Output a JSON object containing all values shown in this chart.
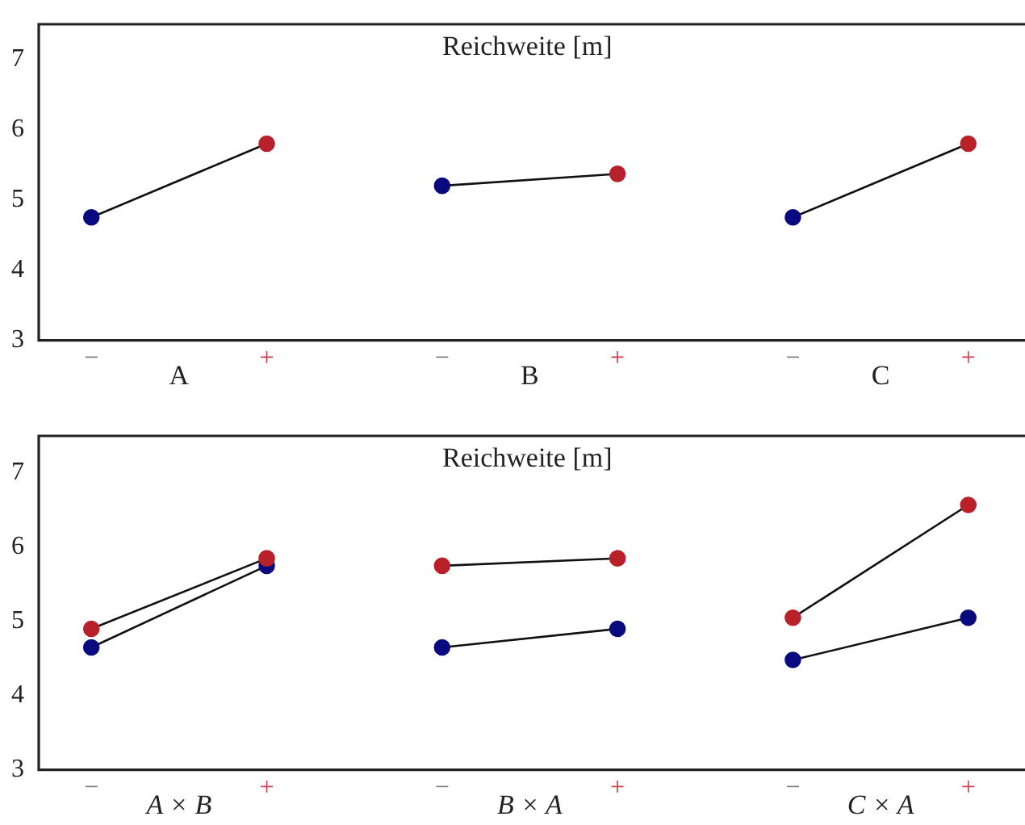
{
  "chart_data": [
    {
      "type": "line",
      "title": "Reichweite [m]",
      "categories": [
        "−",
        "+",
        "−",
        "+",
        "−",
        "+"
      ],
      "annotations": [
        "A",
        "B",
        "C"
      ],
      "series": [
        {
          "values": [
            4.75,
            5.8,
            5.2,
            5.37,
            4.75,
            5.8
          ],
          "colors": [
            "#0a0a80",
            "#b8202a",
            "#0a0a80",
            "#b8202a",
            "#0a0a80",
            "#b8202a"
          ]
        }
      ],
      "ylim": [
        3,
        7.5
      ],
      "yticks": [
        3,
        4,
        5,
        6,
        7
      ],
      "grid": false,
      "legend": false,
      "marker": "circle",
      "line_style": "solid"
    },
    {
      "type": "line",
      "title": "Reichweite [m]",
      "categories": [
        "−",
        "+",
        "−",
        "+",
        "−",
        "+"
      ],
      "annotations": [
        "A × B",
        "B × A",
        "C × A"
      ],
      "series": [
        {
          "color": "#b8202a",
          "values": [
            4.9,
            5.85,
            5.75,
            5.85,
            5.05,
            6.57
          ]
        },
        {
          "color": "#0a0a80",
          "values": [
            4.65,
            5.75,
            4.65,
            4.9,
            4.48,
            5.05
          ]
        }
      ],
      "ylim": [
        3,
        7.5
      ],
      "yticks": [
        3,
        4,
        5,
        6,
        7
      ],
      "grid": false,
      "legend": false,
      "marker": "circle",
      "line_style": "solid"
    }
  ]
}
